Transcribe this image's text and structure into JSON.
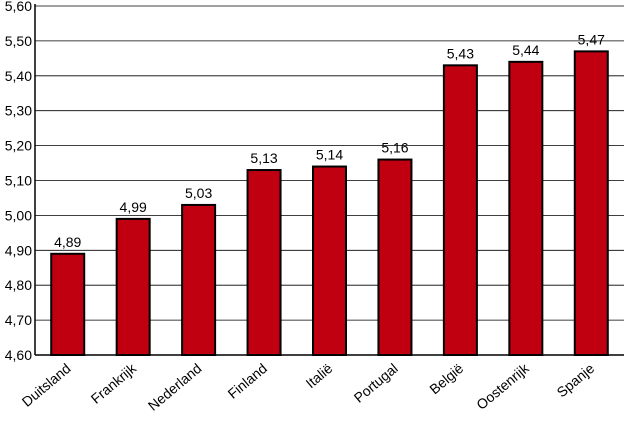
{
  "chart_data": {
    "type": "bar",
    "categories": [
      "Duitsland",
      "Frankrijk",
      "Nederland",
      "Finland",
      "Italië",
      "Portugal",
      "België",
      "Oostenrijk",
      "Spanje"
    ],
    "values": [
      4.89,
      4.99,
      5.03,
      5.13,
      5.14,
      5.16,
      5.43,
      5.44,
      5.47
    ],
    "value_labels": [
      "4,89",
      "4,99",
      "5,03",
      "5,13",
      "5,14",
      "5,16",
      "5,43",
      "5,44",
      "5,47"
    ],
    "title": "",
    "xlabel": "",
    "ylabel": "",
    "ylim": [
      4.6,
      5.6
    ],
    "yticks": [
      4.6,
      4.7,
      4.8,
      4.9,
      5.0,
      5.1,
      5.2,
      5.3,
      5.4,
      5.5,
      5.6
    ],
    "ytick_labels": [
      "4,60",
      "4,70",
      "4,80",
      "4,90",
      "5,00",
      "5,10",
      "5,20",
      "5,30",
      "5,40",
      "5,50",
      "5,60"
    ],
    "grid": true,
    "legend": "none",
    "bar_color": "#c00010",
    "bar_outline_color": "#000000"
  }
}
